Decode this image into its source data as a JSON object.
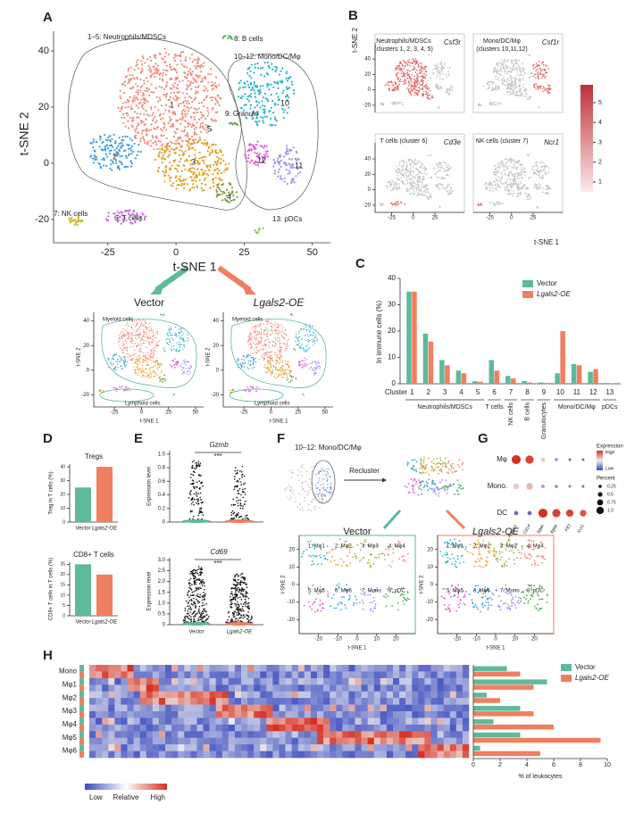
{
  "panel_labels": [
    "A",
    "B",
    "C",
    "D",
    "E",
    "F",
    "G",
    "H"
  ],
  "panel_a": {
    "xlabel": "t-SNE 1",
    "ylabel": "t-SNE 2",
    "xlim": [
      -40,
      55
    ],
    "ylim": [
      -27,
      47
    ],
    "xticks": [
      -25,
      0,
      25,
      50
    ],
    "yticks": [
      -20,
      0,
      20,
      40
    ],
    "clusters": [
      "1–5: Neutrophils/MDSCs",
      "8: B cells",
      "10–12: Mono/DC/Mφ",
      "1",
      "2",
      "3",
      "4",
      "5",
      "9: Granulo",
      "10",
      "11",
      "12",
      "6: T cells",
      "7: NK cells",
      "13: pDCs"
    ]
  },
  "panel_a_groups": {
    "groups": [
      "Vector",
      "Lgals2-OE"
    ],
    "regions": [
      "Myeloid cells",
      "Lymphoid cells"
    ],
    "xlabel": "t-SNE 1",
    "ylabel": "t-SNE 2",
    "xticks": [
      -25,
      0,
      25,
      50
    ],
    "yticks": [
      -20,
      0,
      20,
      40
    ]
  },
  "panel_b": {
    "plots": [
      {
        "title": "Neutrophils/MDSCs",
        "subtitle": "(clusters 1, 2, 3, 4, 5)",
        "gene": "Csf3r"
      },
      {
        "title": "Mono/DC/Mφ",
        "subtitle": "(clusters 10,11,12)",
        "gene": "Csf1r"
      },
      {
        "title": "T cells (cluster 6)",
        "gene": "Cd3e"
      },
      {
        "title": "NK cells (cluster 7)",
        "gene": "Ncr1"
      }
    ],
    "xlabel": "t-SNE 1",
    "ylabel": "t-SNE 2",
    "xticks": [
      -25,
      0,
      25
    ],
    "yticks": [
      -20,
      0,
      20,
      40
    ],
    "colorbar_lim": [
      0.5,
      5.9
    ],
    "colorbar_ticks": [
      1,
      2,
      3,
      4,
      5
    ]
  },
  "chart_data": [
    {
      "type": "bar",
      "ylabel": "In immune cells (%)",
      "xlabel": "Cluster",
      "categories": [
        "1",
        "2",
        "3",
        "4",
        "5",
        "6",
        "7",
        "8",
        "9",
        "10",
        "11",
        "12",
        "13"
      ],
      "groups": [
        "Neutrophils/MDSCs",
        "T cells",
        "NK cells",
        "B cells",
        "Granulocytes",
        "Mono/DC/Mφ",
        "pDCs"
      ],
      "series": [
        {
          "name": "Vector",
          "color": "#5dba9a",
          "values": [
            35,
            19,
            9,
            5,
            1,
            9,
            3,
            1,
            0.5,
            4,
            7.5,
            4.5,
            0.3
          ]
        },
        {
          "name": "Lgals2-OE",
          "color": "#ef7f60",
          "values": [
            35,
            16,
            7,
            4,
            0.8,
            5,
            2,
            0.5,
            0.3,
            20,
            7,
            5.5,
            0.2
          ]
        }
      ],
      "ylim": [
        0,
        40
      ],
      "yticks": [
        0,
        10,
        20,
        30,
        40
      ],
      "legend": "top-right"
    },
    {
      "type": "bar",
      "title": "Tregs",
      "ylabel": "Treg in T cells (%)",
      "categories": [
        "Vector",
        "Lgals2-OE"
      ],
      "values": [
        25,
        40
      ],
      "colors": [
        "#5dba9a",
        "#ef7f60"
      ],
      "ylim": [
        0,
        42
      ],
      "yticks": [
        0,
        10,
        20,
        30,
        40
      ]
    },
    {
      "type": "bar",
      "title": "CD8+ T cells",
      "ylabel": "CD8+ T cells in T cells (%)",
      "categories": [
        "Vector",
        "Lgals2-OE"
      ],
      "values": [
        25,
        20
      ],
      "colors": [
        "#5dba9a",
        "#ef7f60"
      ],
      "ylim": [
        0,
        26
      ],
      "yticks": [
        0,
        5,
        10,
        15,
        20,
        25
      ]
    },
    {
      "type": "hbar",
      "xlabel": "% of leukocytes",
      "categories": [
        "Mono",
        "Mφ1",
        "Mφ2",
        "Mφ3",
        "Mφ4",
        "Mφ5",
        "Mφ6"
      ],
      "series": [
        {
          "name": "Vector",
          "color": "#5dba9a",
          "values": [
            2.5,
            5.5,
            1,
            3.5,
            1.5,
            3.5,
            0.5
          ]
        },
        {
          "name": "Lgals2-OE",
          "color": "#ef7f60",
          "values": [
            3.5,
            4.5,
            2,
            4.5,
            6,
            9.5,
            5
          ]
        }
      ],
      "xlim": [
        0,
        10
      ],
      "xticks": [
        0,
        2,
        4,
        6,
        8,
        10
      ],
      "legend": "top-right"
    }
  ],
  "panel_e": {
    "ylabel": "Expression level",
    "categories": [
      "Vector",
      "Lgals2-OE"
    ],
    "plots": [
      {
        "gene": "Gzmb",
        "significance": "***",
        "ylim": [
          0,
          1.05
        ],
        "yticks": [
          0,
          0.2,
          0.4,
          0.6,
          0.8,
          {
            "value": 1,
            "label": "1.0"
          }
        ]
      },
      {
        "gene": "Cd69",
        "significance": "***",
        "ylim": [
          0,
          3.1
        ],
        "yticks": [
          0,
          0.5,
          {
            "value": 1,
            "label": "1.0"
          },
          1.5,
          {
            "value": 2,
            "label": "2.0"
          },
          2.5,
          {
            "value": 3,
            "label": "3.0"
          }
        ]
      }
    ]
  },
  "panel_f": {
    "title": "10–12: Mono/DC/Mφ",
    "action": "Recluster",
    "groups": [
      "Vector",
      "Lgals2-OE"
    ],
    "clusters": [
      "1: Mφ1",
      "2: Mφ2",
      "3: Mφ3",
      "4: Mφ4",
      "5: Mφ5",
      "6: Mφ6",
      "7: Mono",
      "8: pDC"
    ],
    "xlabel": "t-SNE 1",
    "ylabel": "t-SNE 2",
    "xlim": [
      -30,
      30
    ],
    "ylim": [
      -28,
      28
    ],
    "xticks": [
      -20,
      -10,
      0,
      10,
      20
    ],
    "yticks": [
      -20,
      -10,
      0,
      10,
      20
    ]
  },
  "panel_g": {
    "rows": [
      "Mφ",
      "Mono.",
      "DC"
    ],
    "genes": [
      "Adgre1",
      "Cd14",
      "Itgax",
      "Itgae",
      "Flt3",
      "Xcr1"
    ],
    "percent": [
      [
        0.9,
        0.8,
        0.3,
        0.2,
        0.1,
        0.1
      ],
      [
        0.5,
        0.6,
        0.2,
        0.15,
        0.1,
        0.1
      ],
      [
        0.3,
        0.3,
        0.9,
        0.8,
        0.7,
        0.6
      ]
    ],
    "expression": [
      [
        1,
        0.9,
        0.2,
        -0.5,
        -0.8,
        -0.8
      ],
      [
        0.2,
        0.3,
        -0.5,
        -0.7,
        -0.7,
        -0.8
      ],
      [
        -0.8,
        -0.8,
        1,
        0.9,
        0.9,
        0.8
      ]
    ],
    "legend_title": "Expression",
    "legend_high": "High",
    "legend_low": "Low",
    "size_title": "Percent",
    "size_ticks": [
      0.25,
      0.5,
      0.75,
      {
        "value": 1,
        "label": "1.0"
      }
    ]
  },
  "panel_h": {
    "scale": [
      "Low",
      "Relative",
      "High"
    ]
  }
}
